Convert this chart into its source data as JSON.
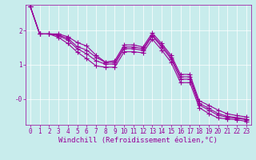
{
  "background_color": "#c8ecec",
  "grid_color": "#ffffff",
  "line_color": "#990099",
  "line_width": 0.8,
  "marker": "+",
  "marker_size": 4,
  "marker_edge_width": 0.8,
  "xlabel": "Windchill (Refroidissement éolien,°C)",
  "xlabel_fontsize": 6.5,
  "tick_fontsize": 5.5,
  "xlim": [
    -0.5,
    23.5
  ],
  "ylim": [
    -0.75,
    2.75
  ],
  "series": [
    [
      2.7,
      1.9,
      1.9,
      1.9,
      1.82,
      1.65,
      1.55,
      1.28,
      1.08,
      1.12,
      1.58,
      1.58,
      1.52,
      1.93,
      1.62,
      1.28,
      0.72,
      0.72,
      -0.05,
      -0.18,
      -0.32,
      -0.43,
      -0.48,
      -0.52
    ],
    [
      2.7,
      1.9,
      1.9,
      1.87,
      1.77,
      1.53,
      1.43,
      1.22,
      1.07,
      1.07,
      1.52,
      1.52,
      1.47,
      1.87,
      1.57,
      1.22,
      0.65,
      0.65,
      -0.12,
      -0.27,
      -0.42,
      -0.5,
      -0.54,
      -0.58
    ],
    [
      2.7,
      1.9,
      1.9,
      1.85,
      1.72,
      1.47,
      1.32,
      1.12,
      1.02,
      1.02,
      1.47,
      1.47,
      1.42,
      1.84,
      1.52,
      1.17,
      0.58,
      0.58,
      -0.17,
      -0.32,
      -0.47,
      -0.53,
      -0.56,
      -0.6
    ],
    [
      2.7,
      1.9,
      1.9,
      1.8,
      1.62,
      1.37,
      1.18,
      0.97,
      0.93,
      0.93,
      1.38,
      1.38,
      1.35,
      1.75,
      1.43,
      1.07,
      0.48,
      0.48,
      -0.25,
      -0.42,
      -0.55,
      -0.58,
      -0.6,
      -0.65
    ]
  ]
}
